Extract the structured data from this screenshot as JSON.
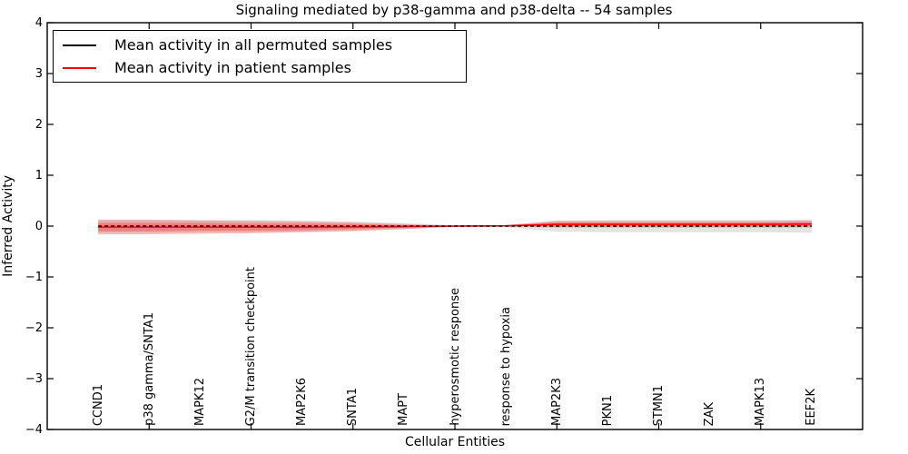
{
  "title": "Signaling mediated by p38-gamma and p38-delta -- 54 samples",
  "axes": {
    "xlabel": "Cellular Entities",
    "ylabel": "Inferred Activity",
    "y_tick_labels": [
      "4",
      "3",
      "2",
      "1",
      "0",
      "−1",
      "−2",
      "−3",
      "−4"
    ]
  },
  "legend": {
    "items": [
      {
        "label": "Mean activity in all permuted samples",
        "color": "#000000"
      },
      {
        "label": "Mean activity in patient samples",
        "color": "#ff0000"
      }
    ]
  },
  "colors": {
    "frame": "#000000",
    "permuted_line": "#000000",
    "patient_line": "#ff0000",
    "permuted_band": "#000000",
    "patient_band": "#ff0000"
  },
  "chart_data": {
    "type": "line",
    "title": "Signaling mediated by p38-gamma and p38-delta -- 54 samples",
    "xlabel": "Cellular Entities",
    "ylabel": "Inferred Activity",
    "xlim": [
      0,
      16
    ],
    "ylim": [
      -4,
      4
    ],
    "grid": false,
    "legend_position": "upper left",
    "x_major_ticks": [
      2,
      4,
      6,
      8,
      10,
      12,
      14
    ],
    "y_major_ticks": [
      4,
      3,
      2,
      1,
      0,
      -1,
      -2,
      -3,
      -4
    ],
    "categories": [
      "CCND1",
      "p38 gamma/SNTA1",
      "MAPK12",
      "G2/M transition checkpoint",
      "MAP2K6",
      "SNTA1",
      "MAPT",
      "hyperosmotic response",
      "response to hypoxia",
      "MAP2K3",
      "PKN1",
      "STMN1",
      "ZAK",
      "MAPK13",
      "EEF2K"
    ],
    "x": [
      1,
      2,
      3,
      4,
      5,
      6,
      7,
      8,
      9,
      10,
      11,
      12,
      13,
      14,
      15
    ],
    "series": [
      {
        "name": "Mean activity in all permuted samples",
        "color": "#000000",
        "style": "dashed",
        "values": [
          0,
          0,
          0,
          0,
          0,
          0,
          0,
          0,
          0,
          0,
          0,
          0,
          0,
          0,
          0
        ]
      },
      {
        "name": "Mean activity in patient samples",
        "color": "#ff0000",
        "style": "solid",
        "values": [
          -0.02,
          -0.02,
          -0.02,
          -0.02,
          -0.02,
          -0.015,
          -0.01,
          0,
          0.005,
          0.035,
          0.035,
          0.035,
          0.035,
          0.035,
          0.04
        ]
      }
    ],
    "bands": [
      {
        "name": "permuted-std-band",
        "color": "#000000",
        "opacity": 0.11,
        "upper": [
          0.13,
          0.13,
          0.12,
          0.12,
          0.11,
          0.09,
          0.06,
          0.02,
          0.02,
          0.11,
          0.12,
          0.12,
          0.12,
          0.12,
          0.13
        ],
        "lower": [
          -0.13,
          -0.13,
          -0.12,
          -0.12,
          -0.11,
          -0.09,
          -0.06,
          -0.02,
          -0.02,
          -0.11,
          -0.12,
          -0.12,
          -0.12,
          -0.12,
          -0.13
        ]
      },
      {
        "name": "patient-std-outer-band",
        "color": "#ff0000",
        "opacity": 0.25,
        "upper": [
          0.12,
          0.12,
          0.11,
          0.1,
          0.09,
          0.07,
          0.04,
          0.01,
          0.02,
          0.1,
          0.1,
          0.1,
          0.1,
          0.1,
          0.11
        ],
        "lower": [
          -0.16,
          -0.16,
          -0.15,
          -0.14,
          -0.12,
          -0.1,
          -0.06,
          -0.01,
          -0.01,
          -0.03,
          -0.03,
          -0.03,
          -0.03,
          -0.03,
          -0.03
        ]
      },
      {
        "name": "patient-std-inner-band",
        "color": "#ff0000",
        "opacity": 0.25,
        "upper": [
          0.06,
          0.06,
          0.06,
          0.05,
          0.05,
          0.04,
          0.02,
          0.005,
          0.01,
          0.07,
          0.07,
          0.07,
          0.07,
          0.07,
          0.08
        ],
        "lower": [
          -0.1,
          -0.1,
          -0.09,
          -0.09,
          -0.08,
          -0.06,
          -0.03,
          -0.005,
          0,
          -0.005,
          -0.005,
          -0.005,
          -0.005,
          -0.005,
          0
        ]
      }
    ]
  }
}
